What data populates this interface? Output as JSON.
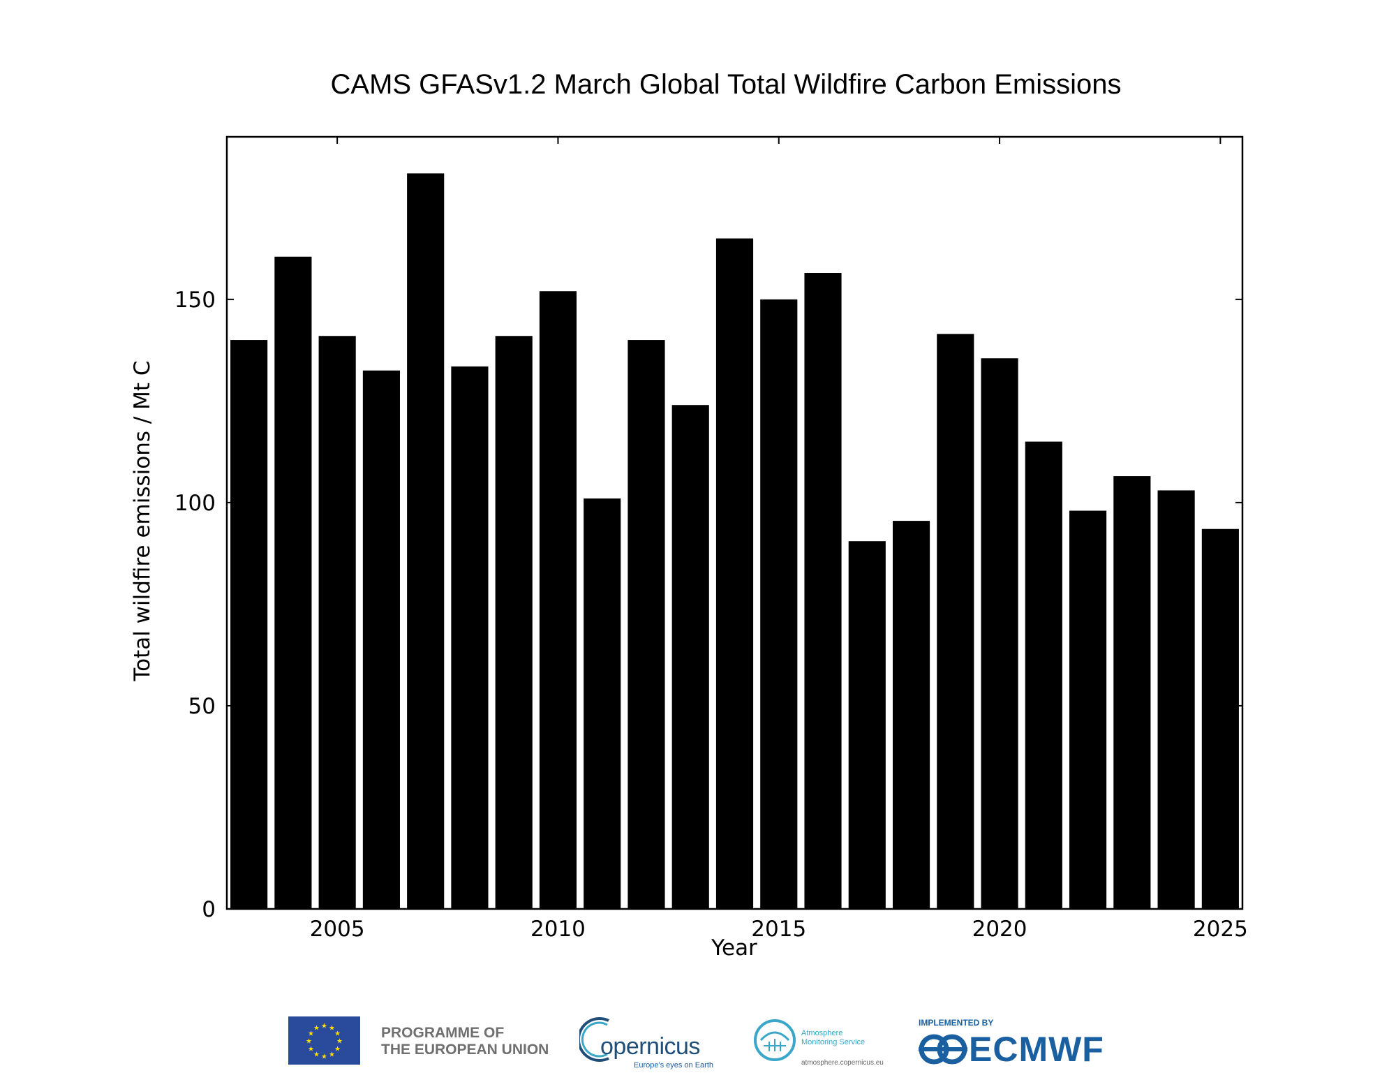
{
  "chart_data": {
    "type": "bar",
    "title": "CAMS GFASv1.2 March Global Total Wildfire Carbon Emissions",
    "xlabel": "Year",
    "ylabel": "Total wildfire emissions / Mt C",
    "x": [
      2003,
      2004,
      2005,
      2006,
      2007,
      2008,
      2009,
      2010,
      2011,
      2012,
      2013,
      2014,
      2015,
      2016,
      2017,
      2018,
      2019,
      2020,
      2021,
      2022,
      2023,
      2024,
      2025
    ],
    "values": [
      140,
      160.5,
      141,
      132.5,
      181,
      133.5,
      141,
      152,
      101,
      140,
      124,
      165,
      150,
      156.5,
      90.5,
      95.5,
      141.5,
      135.5,
      115,
      98,
      106.5,
      103,
      93.5
    ],
    "xticks": [
      2005,
      2010,
      2015,
      2020,
      2025
    ],
    "xtick_labels": [
      "2005",
      "2010",
      "2015",
      "2020",
      "2025"
    ],
    "yticks": [
      0,
      50,
      100,
      150
    ],
    "ytick_labels": [
      "0",
      "50",
      "100",
      "150"
    ],
    "xlim": [
      2002.5,
      2025.5
    ],
    "ylim": [
      0,
      190
    ],
    "bar_color": "#000000",
    "grid": false
  },
  "footer": {
    "eu_line1": "PROGRAMME OF",
    "eu_line2": "THE EUROPEAN UNION",
    "copernicus_name": "opernicus",
    "copernicus_tagline": "Europe's eyes on Earth",
    "cams_line1": "Atmosphere",
    "cams_line2": "Monitoring Service",
    "cams_url": "atmosphere.copernicus.eu",
    "ecmwf_small": "IMPLEMENTED BY",
    "ecmwf_name": "ECMWF",
    "eu_flag_color": "#2a4b9b",
    "star_color": "#ffdd00",
    "ecmwf_color": "#1a5fa0"
  }
}
